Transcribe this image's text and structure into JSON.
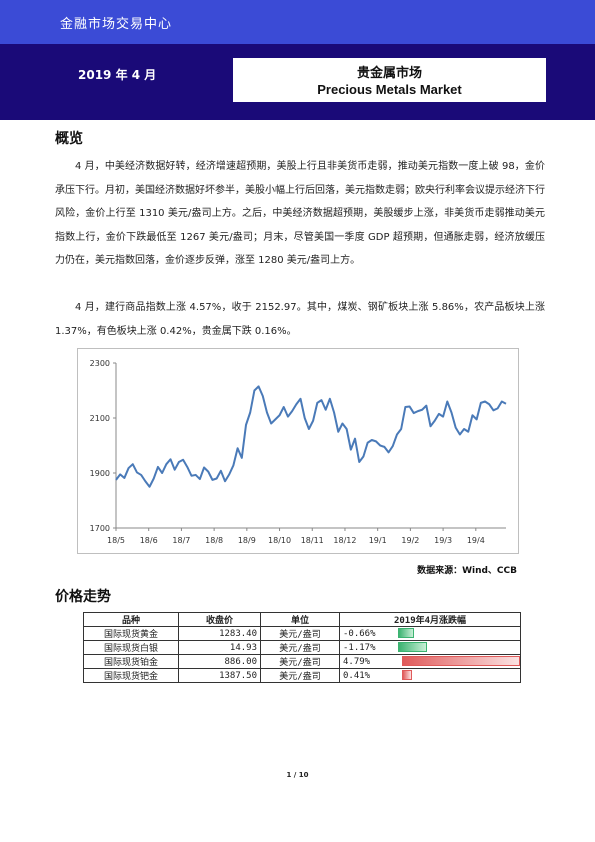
{
  "header": {
    "org": "金融市场交易中心",
    "date": "2019 年 4 月",
    "title_cn": "贵金属市场",
    "title_en": "Precious Metals Market"
  },
  "overview": {
    "heading": "概览",
    "para1": "4 月，中美经济数据好转，经济增速超预期，美股上行且非美货币走弱，推动美元指数一度上破 98，金价承压下行。月初，美国经济数据好坏参半，美股小幅上行后回落，美元指数走弱；欧央行利率会议提示经济下行风险，金价上行至 1310 美元/盎司上方。之后，中美经济数据超预期，美股缓步上涨，非美货币走弱推动美元指数上行，金价下跌最低至 1267 美元/盎司；月末，尽管美国一季度 GDP 超预期，但通胀走弱，经济放缓压力仍在，美元指数回落，金价逐步反弹，涨至 1280 美元/盎司上方。",
    "para2": "4 月，建行商品指数上涨 4.57%，收于 2152.97。其中，煤炭、钢矿板块上涨 5.86%，农产品板块上涨 1.37%，有色板块上涨 0.42%，贵金属下跌 0.16%。"
  },
  "chart_data": {
    "type": "line",
    "series": [
      {
        "values": [
          1875,
          1895,
          1882,
          1918,
          1932,
          1902,
          1893,
          1870,
          1850,
          1880,
          1922,
          1900,
          1932,
          1950,
          1912,
          1940,
          1948,
          1922,
          1890,
          1893,
          1878,
          1920,
          1905,
          1875,
          1880,
          1908,
          1870,
          1895,
          1928,
          1990,
          1955,
          2075,
          2120,
          2200,
          2215,
          2180,
          2120,
          2080,
          2095,
          2110,
          2140,
          2105,
          2125,
          2150,
          2170,
          2100,
          2060,
          2090,
          2155,
          2165,
          2130,
          2170,
          2120,
          2050,
          2080,
          2060,
          1985,
          2025,
          1940,
          1960,
          2010,
          2020,
          2015,
          2000,
          1995,
          1975,
          1998,
          2040,
          2060,
          2140,
          2142,
          2118,
          2125,
          2130,
          2145,
          2070,
          2090,
          2115,
          2105,
          2160,
          2120,
          2065,
          2040,
          2060,
          2050,
          2110,
          2095,
          2155,
          2160,
          2150,
          2128,
          2135,
          2160,
          2152
        ]
      }
    ],
    "x_tick_labels": [
      "18/5",
      "18/6",
      "18/7",
      "18/8",
      "18/9",
      "18/10",
      "18/11",
      "18/12",
      "19/1",
      "19/2",
      "19/3",
      "19/4"
    ],
    "y_tick_labels": [
      "1700",
      "1900",
      "2100",
      "2300"
    ],
    "ylim": [
      1700,
      2300
    ],
    "xlim": [
      0,
      93
    ],
    "x_tick_positions": [
      0,
      7.8,
      15.6,
      23.4,
      31.2,
      39,
      46.8,
      54.6,
      62.4,
      70.2,
      78,
      85.8
    ],
    "line_color": "#4a7ab8"
  },
  "source": "数据来源：Wind、CCB",
  "price": {
    "heading": "价格走势",
    "headers": [
      "品种",
      "收盘价",
      "单位",
      "2019年4月涨跌幅"
    ],
    "rows": [
      {
        "name": "国际现货黄金",
        "close": "1283.40",
        "unit": "美元/盎司",
        "change": "-0.66%",
        "value": -0.66
      },
      {
        "name": "国际现货白银",
        "close": "14.93",
        "unit": "美元/盎司",
        "change": "-1.17%",
        "value": -1.17
      },
      {
        "name": "国际现货铂金",
        "close": "886.00",
        "unit": "美元/盎司",
        "change": "4.79%",
        "value": 4.79
      },
      {
        "name": "国际现货钯金",
        "close": "1387.50",
        "unit": "美元/盎司",
        "change": "0.41%",
        "value": 0.41
      }
    ],
    "colors": {
      "neg": "#3cb371",
      "pos": "#e05a5a"
    }
  },
  "footer": {
    "page": "1 / 10"
  }
}
